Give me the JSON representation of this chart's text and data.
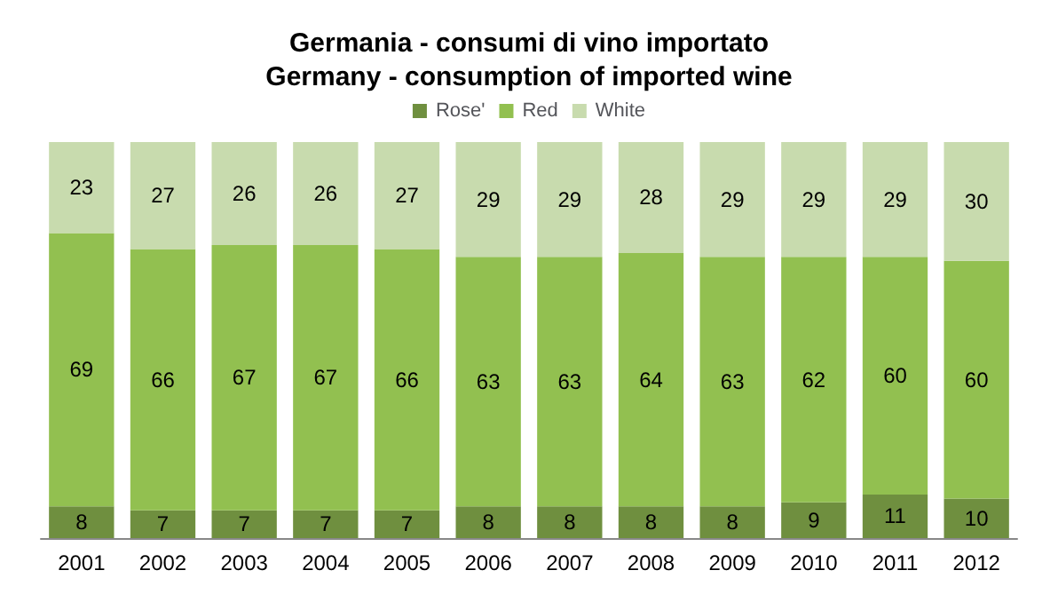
{
  "chart_data": {
    "type": "bar",
    "title": "Germania - consumi di vino importato",
    "subtitle": "Germany - consumption of imported wine",
    "categories": [
      "2001",
      "2002",
      "2003",
      "2004",
      "2005",
      "2006",
      "2007",
      "2008",
      "2009",
      "2010",
      "2011",
      "2012"
    ],
    "stacked": true,
    "data_labels": true,
    "legend": "top",
    "series": [
      {
        "name": "Rose'",
        "color": "#6f8f3f",
        "values": [
          8,
          7,
          7,
          7,
          7,
          8,
          8,
          8,
          8,
          9,
          11,
          10
        ]
      },
      {
        "name": "Red",
        "color": "#92c050",
        "values": [
          69,
          66,
          67,
          67,
          66,
          63,
          63,
          64,
          63,
          62,
          60,
          60
        ]
      },
      {
        "name": "White",
        "color": "#c8dbae",
        "values": [
          23,
          27,
          26,
          26,
          27,
          29,
          29,
          28,
          29,
          29,
          29,
          30
        ]
      }
    ]
  }
}
